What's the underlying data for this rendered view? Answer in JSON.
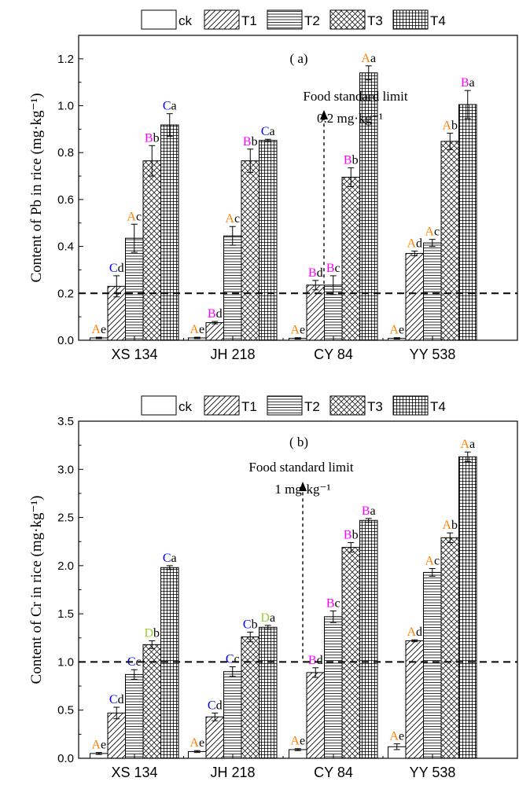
{
  "chart_data": [
    {
      "type": "bar",
      "panel_label": "( a)",
      "ylabel": "Content of Pb in rice (mg·kg⁻¹)",
      "ylim": [
        0,
        1.3
      ],
      "yticks": [
        "0.0",
        "0.2",
        "0.4",
        "0.6",
        "0.8",
        "1.0",
        "1.2"
      ],
      "ytick_values": [
        0,
        0.2,
        0.4,
        0.6,
        0.8,
        1.0,
        1.2
      ],
      "categories": [
        "XS 134",
        "JH 218",
        "CY 84",
        "YY 538"
      ],
      "series": [
        {
          "name": "ck",
          "values": [
            0.01,
            0.01,
            0.008,
            0.008
          ],
          "errors": [
            0.003,
            0.003,
            0.003,
            0.003
          ],
          "upper": [
            "A",
            "A",
            "A",
            "A"
          ],
          "lower": [
            "e",
            "e",
            "e",
            "e"
          ]
        },
        {
          "name": "T1",
          "values": [
            0.23,
            0.075,
            0.235,
            0.37
          ],
          "errors": [
            0.045,
            0.005,
            0.02,
            0.01
          ],
          "upper": [
            "C",
            "B",
            "B",
            "A"
          ],
          "lower": [
            "d",
            "d",
            "d",
            "d"
          ]
        },
        {
          "name": "T2",
          "values": [
            0.435,
            0.445,
            0.235,
            0.415
          ],
          "errors": [
            0.06,
            0.04,
            0.04,
            0.015
          ],
          "upper": [
            "A",
            "A",
            "B",
            "A"
          ],
          "lower": [
            "c",
            "c",
            "c",
            "c"
          ]
        },
        {
          "name": "T3",
          "values": [
            0.765,
            0.765,
            0.695,
            0.848
          ],
          "errors": [
            0.065,
            0.05,
            0.04,
            0.035
          ],
          "upper": [
            "B",
            "B",
            "B",
            "A"
          ],
          "lower": [
            "b",
            "b",
            "b",
            "b"
          ]
        },
        {
          "name": "T4",
          "values": [
            0.918,
            0.852,
            1.14,
            1.005
          ],
          "errors": [
            0.048,
            0.005,
            0.03,
            0.06
          ],
          "upper": [
            "C",
            "C",
            "A",
            "B"
          ],
          "lower": [
            "a",
            "a",
            "a",
            "a"
          ]
        }
      ],
      "reference_line": {
        "value": 0.2,
        "label_line1": "Food standard limit",
        "label_line2": "0.2 mg·kg⁻¹"
      },
      "legend_placement": "top",
      "grid": false
    },
    {
      "type": "bar",
      "panel_label": "( b)",
      "ylabel": "Content of Cr in rice (mg·kg⁻¹)",
      "ylim": [
        0,
        3.5
      ],
      "yticks": [
        "0.0",
        "0.5",
        "1.0",
        "1.5",
        "2.0",
        "2.5",
        "3.0",
        "3.5"
      ],
      "ytick_values": [
        0,
        0.5,
        1.0,
        1.5,
        2.0,
        2.5,
        3.0,
        3.5
      ],
      "categories": [
        "XS 134",
        "JH 218",
        "CY 84",
        "YY 538"
      ],
      "series": [
        {
          "name": "ck",
          "values": [
            0.05,
            0.07,
            0.09,
            0.12
          ],
          "errors": [
            0.01,
            0.01,
            0.01,
            0.03
          ],
          "upper": [
            "A",
            "A",
            "A",
            "A"
          ],
          "lower": [
            "e",
            "e",
            "e",
            "e"
          ]
        },
        {
          "name": "T1",
          "values": [
            0.47,
            0.43,
            0.89,
            1.22
          ],
          "errors": [
            0.06,
            0.04,
            0.05,
            0.01
          ],
          "upper": [
            "C",
            "C",
            "B",
            "A"
          ],
          "lower": [
            "d",
            "d",
            "d",
            "d"
          ]
        },
        {
          "name": "T2",
          "values": [
            0.87,
            0.9,
            1.47,
            1.93
          ],
          "errors": [
            0.05,
            0.05,
            0.06,
            0.04
          ],
          "upper": [
            "C",
            "C",
            "B",
            "A"
          ],
          "lower": [
            "c",
            "c",
            "c",
            "c"
          ]
        },
        {
          "name": "T3",
          "values": [
            1.18,
            1.26,
            2.19,
            2.29
          ],
          "errors": [
            0.04,
            0.05,
            0.05,
            0.05
          ],
          "upper": [
            "D",
            "C",
            "B",
            "A"
          ],
          "lower": [
            "b",
            "b",
            "b",
            "b"
          ]
        },
        {
          "name": "T4",
          "values": [
            1.98,
            1.36,
            2.47,
            3.13
          ],
          "errors": [
            0.02,
            0.02,
            0.02,
            0.05
          ],
          "upper": [
            "C",
            "D",
            "B",
            "A"
          ],
          "lower": [
            "a",
            "a",
            "a",
            "a"
          ]
        }
      ],
      "reference_line": {
        "value": 1.0,
        "label_line1": "Food standard limit",
        "label_line2": "1 mg·kg⁻¹"
      },
      "legend_placement": "top",
      "grid": false
    }
  ],
  "letter_colors": {
    "A": "#ff7f00",
    "B": "#ff00ff",
    "C": "#0000ff",
    "D": "#9acd32",
    "lower": "#000000"
  }
}
